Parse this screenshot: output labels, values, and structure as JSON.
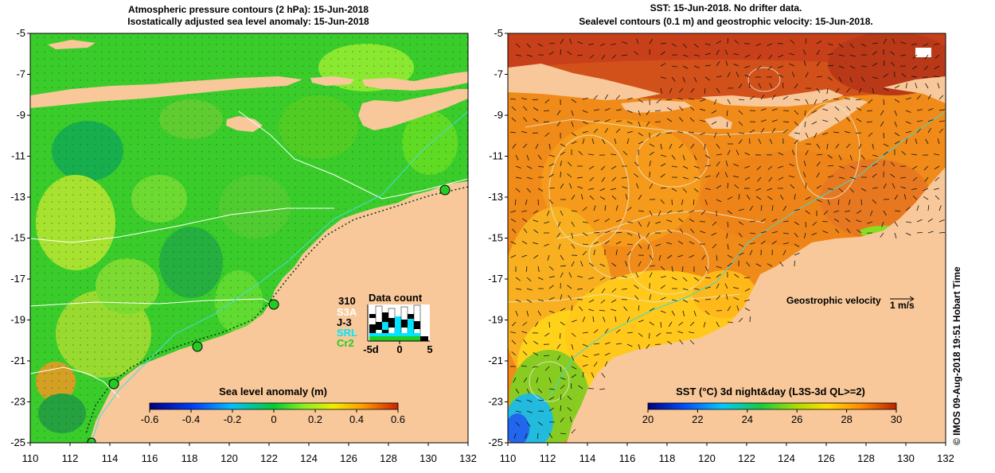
{
  "left_panel": {
    "title_line1": "Atmospheric pressure contours (2 hPa): 15-Jun-2018",
    "title_line2": "Isostatically adjusted sea level anomaly: 15-Jun-2018",
    "y_ticks": [
      "-5",
      "-7",
      "-9",
      "-11",
      "-13",
      "-15",
      "-17",
      "-19",
      "-21",
      "-23",
      "-25"
    ],
    "x_ticks": [
      "110",
      "112",
      "114",
      "116",
      "118",
      "120",
      "122",
      "124",
      "126",
      "128",
      "130",
      "132"
    ],
    "colorbar": {
      "title": "Sea level anomaly (m)",
      "ticks": [
        "-0.6",
        "-0.4",
        "-0.2",
        "0",
        "0.2",
        "0.4",
        "0.6"
      ],
      "range": [
        -0.6,
        0.6
      ]
    },
    "data_count": {
      "title": "Data count",
      "max_label": "310",
      "sats": [
        {
          "name": "S3A",
          "color": "#ffffff"
        },
        {
          "name": "J-3",
          "color": "#000000"
        },
        {
          "name": "SRL",
          "color": "#00e5ff"
        },
        {
          "name": "Cr2",
          "color": "#22cc22"
        }
      ],
      "axis_labels": [
        "-5d",
        "0",
        "5"
      ]
    },
    "tide_gauges": 5
  },
  "right_panel": {
    "title_line1": "SST: 15-Jun-2018. No drifter data.",
    "title_line2": "Sealevel contours (0.1 m) and geostrophic velocity: 15-Jun-2018.",
    "y_ticks": [
      "-5",
      "-7",
      "-9",
      "-11",
      "-13",
      "-15",
      "-17",
      "-19",
      "-21",
      "-23",
      "-25"
    ],
    "x_ticks": [
      "110",
      "112",
      "114",
      "116",
      "118",
      "120",
      "122",
      "124",
      "126",
      "128",
      "130",
      "132"
    ],
    "velocity_legend": {
      "label": "Geostrophic velocity",
      "unit": "1 m/s"
    },
    "colorbar": {
      "title": "SST (°C) 3d night&day (L3S-3d QL>=2)",
      "ticks": [
        "20",
        "22",
        "24",
        "26",
        "28",
        "30"
      ],
      "range": [
        20,
        30
      ]
    }
  },
  "side_label": "© IMOS 09-Aug-2018 19:51 Hobart Time",
  "colors": {
    "land": "#f8c89a",
    "sla_green": "#33cc33",
    "sst_orange": "#f08a18",
    "sst_red": "#c8401a",
    "contour_cyan": "#33dddd"
  }
}
